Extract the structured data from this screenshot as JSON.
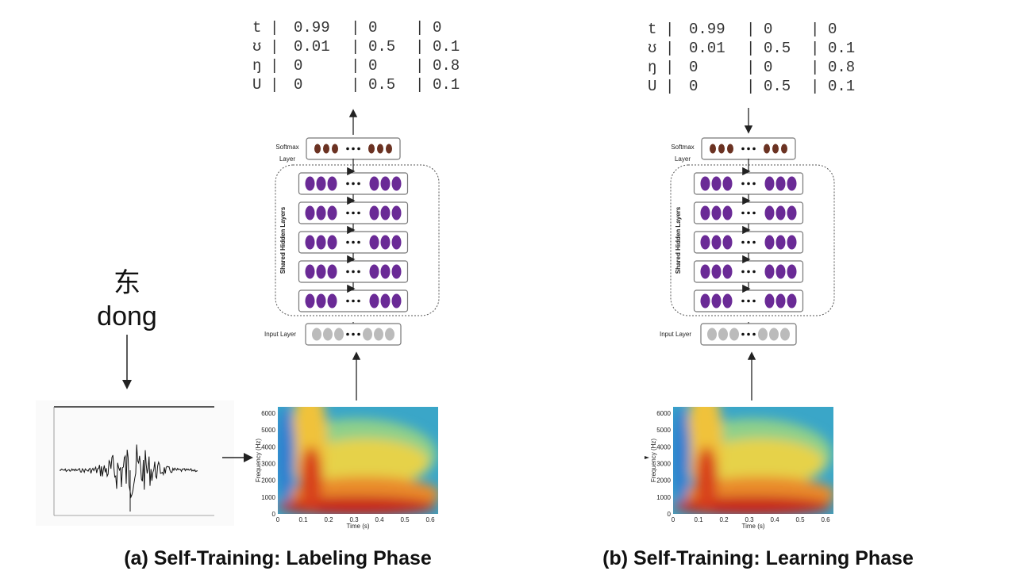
{
  "word": {
    "character": "东",
    "pinyin": "dong"
  },
  "panels": [
    {
      "table": {
        "rows": [
          [
            "t",
            "0.99",
            "0",
            "0"
          ],
          [
            "ʊ",
            "0.01",
            "0.5",
            "0.1"
          ],
          [
            "ŋ",
            "0",
            "0",
            "0.8"
          ],
          [
            "U",
            "0",
            "0.5",
            "0.1"
          ]
        ]
      },
      "network": {
        "softmax_label": [
          "Softmax",
          "Layer"
        ],
        "hidden_label": "Shared Hidden Layers",
        "input_label": "Input Layer"
      },
      "spectrogram": {
        "y_label": "Frequency (Hz)",
        "x_label": "Time (s)",
        "yticks": [
          0,
          1000,
          2000,
          3000,
          4000,
          5000,
          6000
        ],
        "xticks": [
          0,
          0.1,
          0.2,
          0.3,
          0.4,
          0.5,
          0.6
        ]
      },
      "caption": "(a) Self-Training: Labeling Phase"
    },
    {
      "table": {
        "rows": [
          [
            "t",
            "0.99",
            "0",
            "0"
          ],
          [
            "ʊ",
            "0.01",
            "0.5",
            "0.1"
          ],
          [
            "ŋ",
            "0",
            "0",
            "0.8"
          ],
          [
            "U",
            "0",
            "0.5",
            "0.1"
          ]
        ]
      },
      "network": {
        "softmax_label": [
          "Softmax",
          "Layer"
        ],
        "hidden_label": "Shared Hidden Layers",
        "input_label": "Input Layer"
      },
      "spectrogram": {
        "y_label": "Frequency (Hz)",
        "x_label": "Time (s)",
        "yticks": [
          0,
          1000,
          2000,
          3000,
          4000,
          5000,
          6000
        ],
        "xticks": [
          0,
          0.1,
          0.2,
          0.3,
          0.4,
          0.5,
          0.6
        ]
      },
      "caption": "(b) Self-Training: Learning Phase"
    }
  ]
}
